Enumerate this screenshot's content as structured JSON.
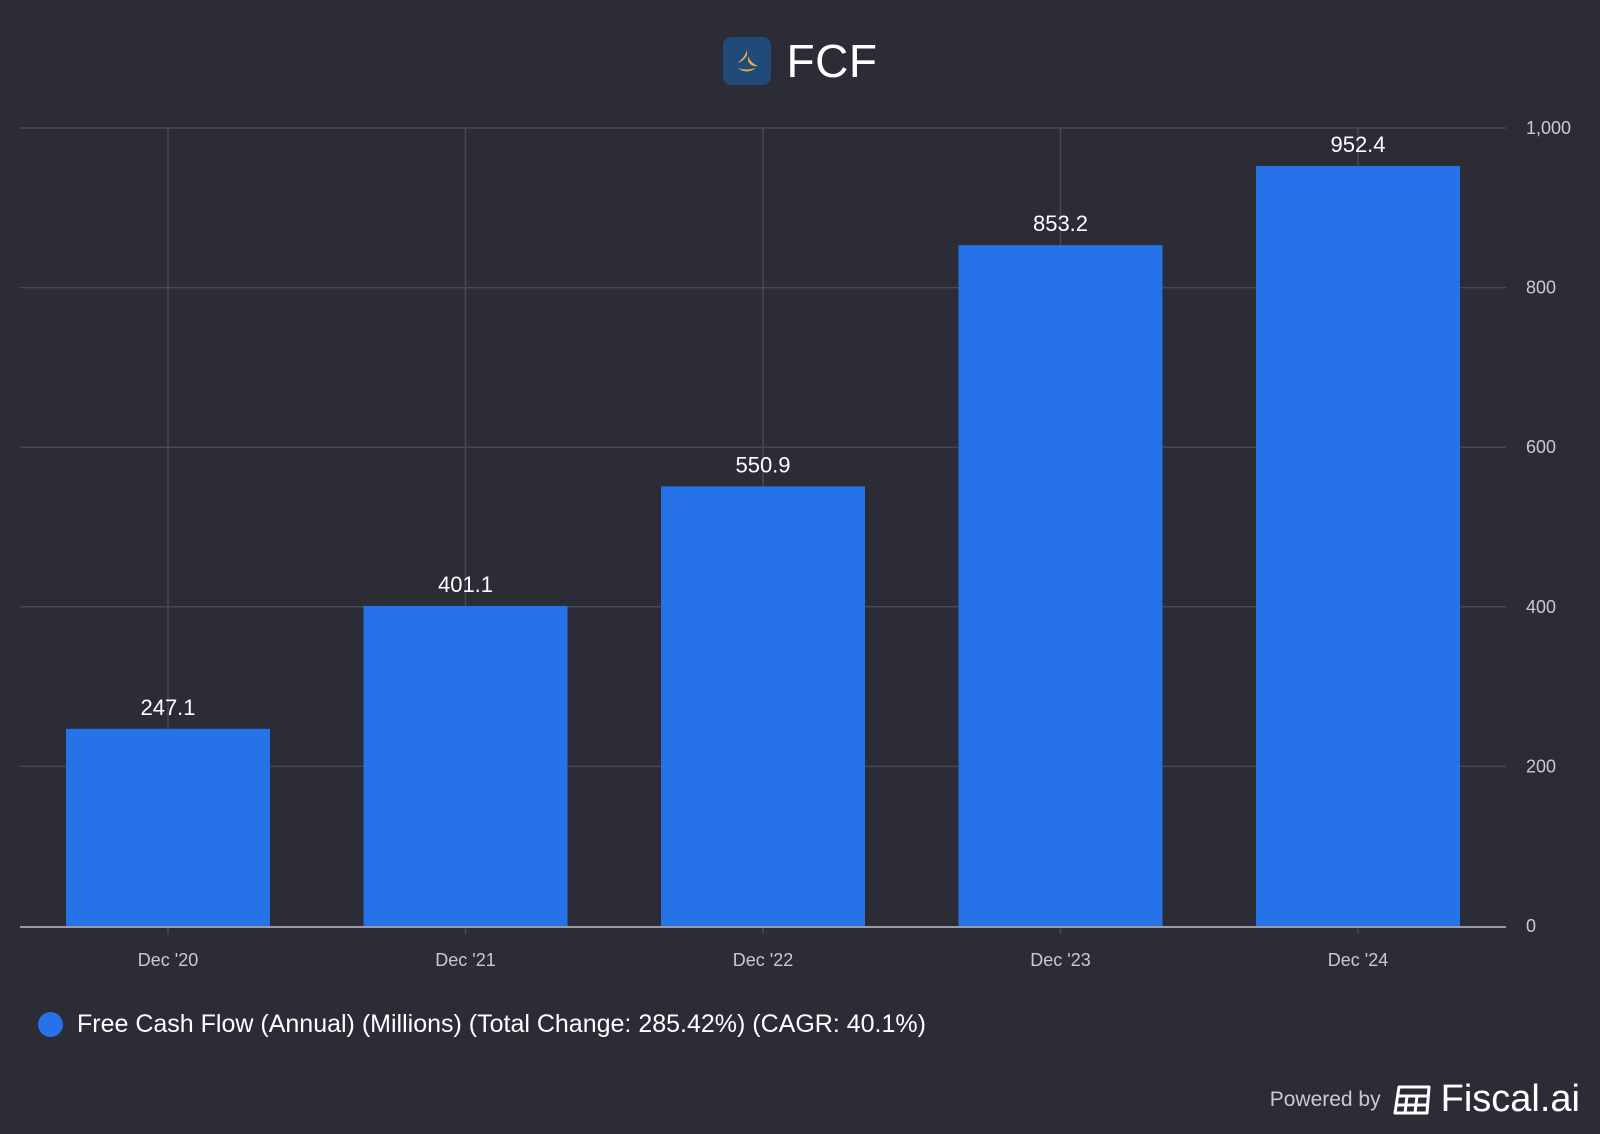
{
  "header": {
    "title": "FCF"
  },
  "colors": {
    "background": "#2b2c35",
    "bar": "#2672e8",
    "grid": "#474852",
    "logo_bg": "#1f4a7a",
    "logo_mark": "#f0a93a"
  },
  "legend": {
    "label": "Free Cash Flow (Annual) (Millions) (Total Change: 285.42%) (CAGR: 40.1%)"
  },
  "footer": {
    "powered_by": "Powered by",
    "brand": "Fiscal.ai"
  },
  "chart_data": {
    "type": "bar",
    "title": "FCF",
    "categories": [
      "Dec '20",
      "Dec '21",
      "Dec '22",
      "Dec '23",
      "Dec '24"
    ],
    "series": [
      {
        "name": "Free Cash Flow (Annual) (Millions) (Total Change: 285.42%) (CAGR: 40.1%)",
        "values": [
          247.1,
          401.1,
          550.9,
          853.2,
          952.4
        ],
        "labels": [
          "247.1",
          "401.1",
          "550.9",
          "853.2",
          "952.4"
        ]
      }
    ],
    "ylim": [
      0,
      1000
    ],
    "yticks": [
      0,
      200,
      400,
      600,
      800,
      1000
    ],
    "ytick_labels": [
      "0",
      "200",
      "400",
      "600",
      "800",
      "1,000"
    ],
    "xlabel": "",
    "ylabel": "",
    "grid": true,
    "y_axis_side": "right",
    "legend_position": "bottom-left"
  }
}
